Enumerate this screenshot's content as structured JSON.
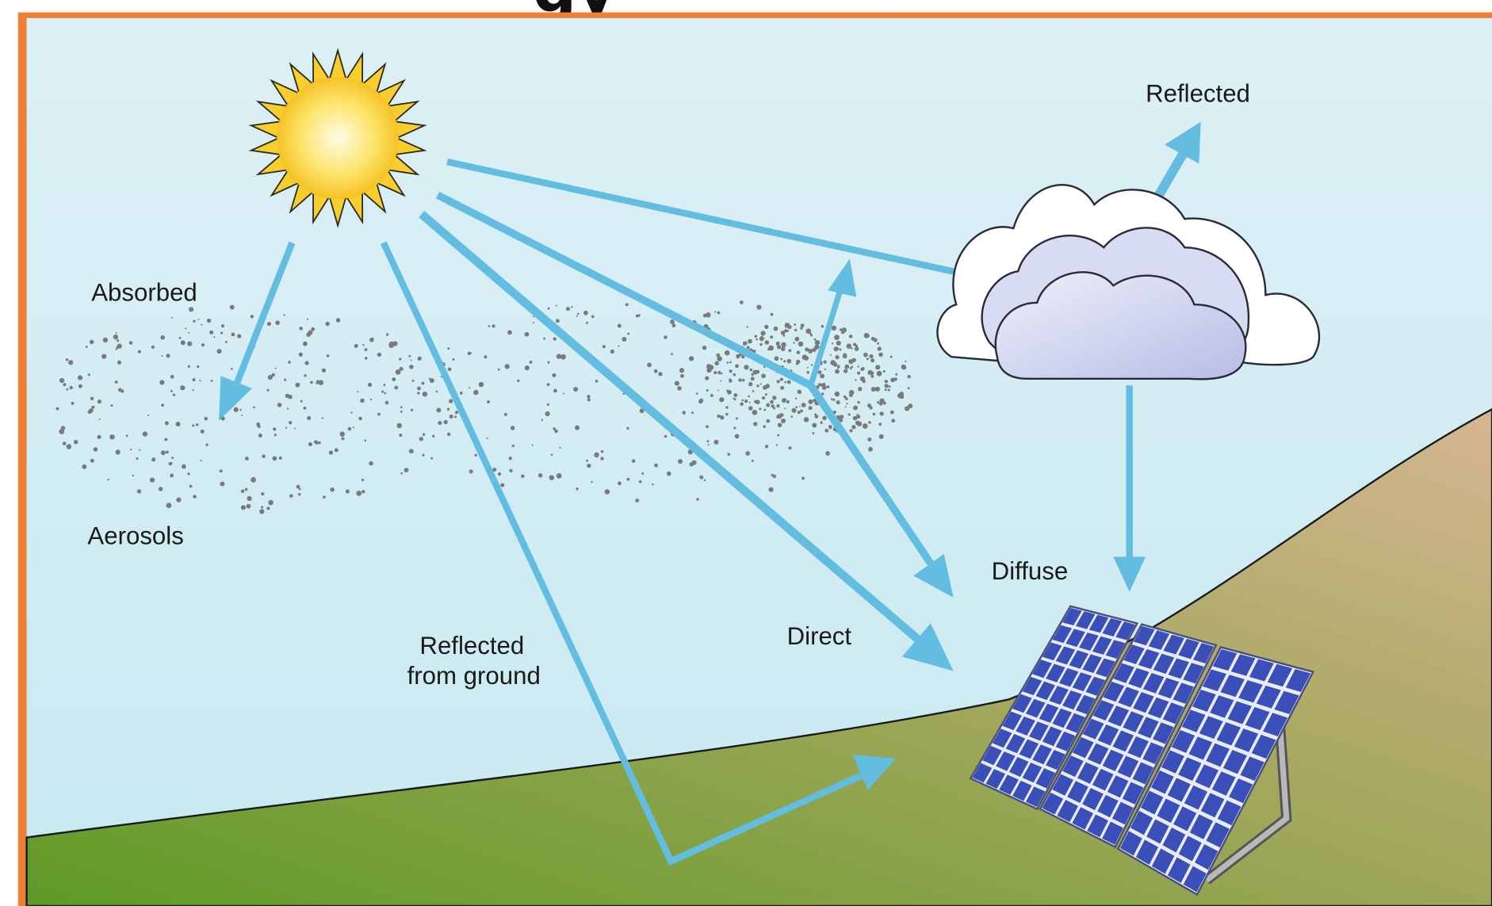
{
  "title": "gy",
  "labels": {
    "reflected": "Reflected",
    "absorbed": "Absorbed",
    "aerosols": "Aerosols",
    "diffuse": "Diffuse",
    "direct": "Direct",
    "reflected_from_ground": [
      "Reflected",
      "from ground"
    ]
  }
}
